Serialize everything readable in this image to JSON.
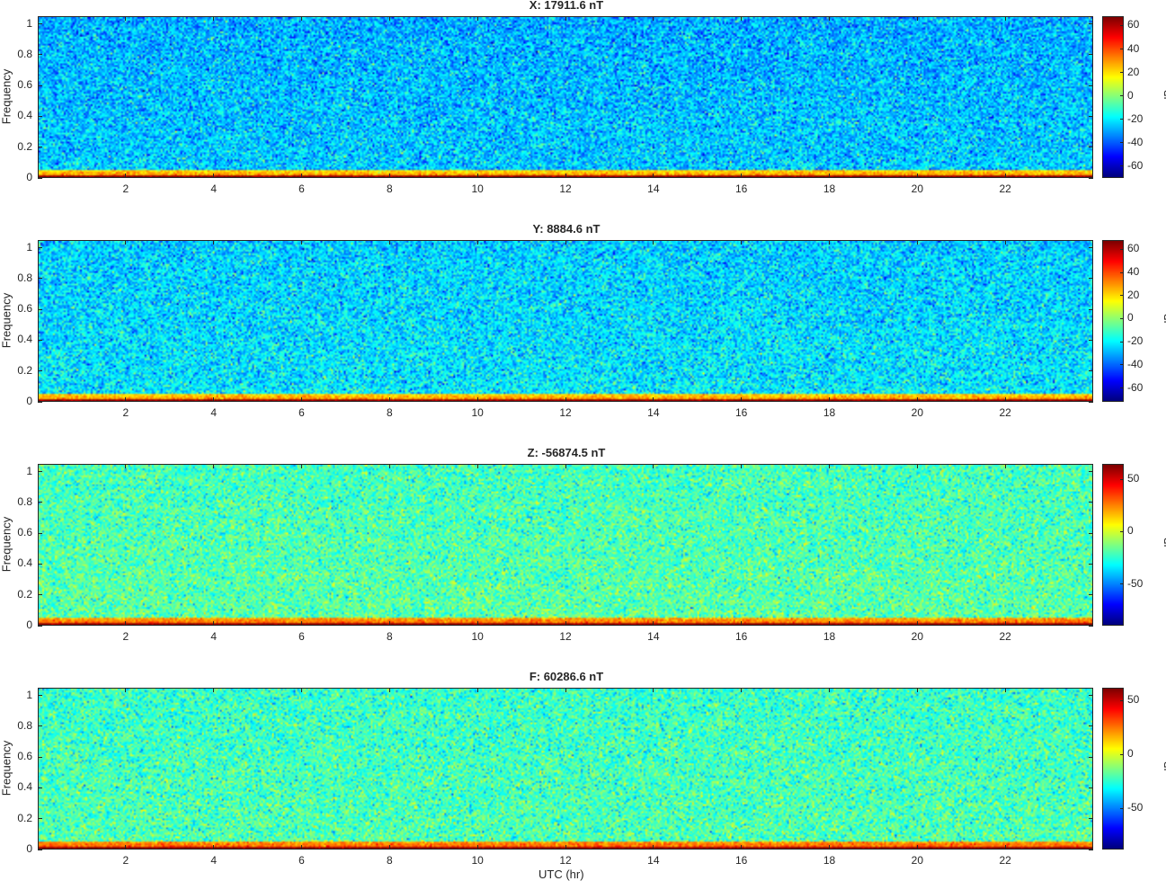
{
  "chart_data": [
    {
      "type": "heatmap",
      "title": "X: 17911.6 nT",
      "ylabel": "Frequency",
      "xlabel": "",
      "colorbar_label": "dB",
      "xlim": [
        0,
        24
      ],
      "ylim": [
        0,
        1.05
      ],
      "xticks": [
        2,
        4,
        6,
        8,
        10,
        12,
        14,
        16,
        18,
        20,
        22
      ],
      "yticks": [
        0,
        0.2,
        0.4,
        0.6,
        0.8,
        1
      ],
      "clim": [
        -70,
        68
      ],
      "cticks": [
        -60,
        -40,
        -20,
        0,
        20,
        40,
        60
      ],
      "background_level_db": -25,
      "low_freq_level_db": 30,
      "dc_level_db": 68,
      "colormap": "jet"
    },
    {
      "type": "heatmap",
      "title": "Y: 8884.6 nT",
      "ylabel": "Frequency",
      "xlabel": "",
      "colorbar_label": "dB",
      "xlim": [
        0,
        24
      ],
      "ylim": [
        0,
        1.05
      ],
      "xticks": [
        2,
        4,
        6,
        8,
        10,
        12,
        14,
        16,
        18,
        20,
        22
      ],
      "yticks": [
        0,
        0.2,
        0.4,
        0.6,
        0.8,
        1
      ],
      "clim": [
        -72,
        68
      ],
      "cticks": [
        -60,
        -40,
        -20,
        0,
        20,
        40,
        60
      ],
      "background_level_db": -22,
      "low_freq_level_db": 30,
      "dc_level_db": 68,
      "colormap": "jet"
    },
    {
      "type": "heatmap",
      "title": "Z: -56874.5 nT",
      "ylabel": "Frequency",
      "xlabel": "",
      "colorbar_label": "dB",
      "xlim": [
        0,
        24
      ],
      "ylim": [
        0,
        1.05
      ],
      "xticks": [
        2,
        4,
        6,
        8,
        10,
        12,
        14,
        16,
        18,
        20,
        22
      ],
      "yticks": [
        0,
        0.2,
        0.4,
        0.6,
        0.8,
        1
      ],
      "clim": [
        -90,
        65
      ],
      "cticks": [
        -50,
        0,
        50
      ],
      "background_level_db": -18,
      "low_freq_level_db": 30,
      "dc_level_db": 65,
      "colormap": "jet"
    },
    {
      "type": "heatmap",
      "title": "F: 60286.6 nT",
      "ylabel": "Frequency",
      "xlabel": "UTC (hr)",
      "colorbar_label": "dB",
      "xlim": [
        0,
        24
      ],
      "ylim": [
        0,
        1.05
      ],
      "xticks": [
        2,
        4,
        6,
        8,
        10,
        12,
        14,
        16,
        18,
        20,
        22
      ],
      "yticks": [
        0,
        0.2,
        0.4,
        0.6,
        0.8,
        1
      ],
      "clim": [
        -88,
        62
      ],
      "cticks": [
        -50,
        0,
        50
      ],
      "background_level_db": -20,
      "low_freq_level_db": 30,
      "dc_level_db": 62,
      "colormap": "jet"
    }
  ],
  "colors": {
    "axis": "#262626",
    "background": "#ffffff"
  }
}
